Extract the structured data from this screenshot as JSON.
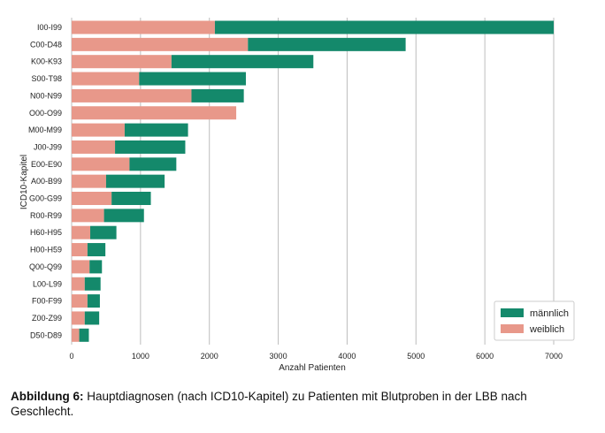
{
  "colors": {
    "maennlich": "#14896b",
    "weiblich": "#e8988a",
    "grid": "#bdbdbd"
  },
  "caption": {
    "lead": "Abbildung 6:",
    "text": " Hauptdiagnosen (nach ICD10-Kapitel) zu Patienten mit Blutproben in der LBB nach Geschlecht."
  },
  "chart_data": {
    "type": "bar",
    "orientation": "horizontal",
    "stacked": true,
    "xlabel": "Anzahl Patienten",
    "ylabel": "ICD10-Kapitel",
    "xlim": [
      0,
      7000
    ],
    "xticks": [
      0,
      1000,
      2000,
      3000,
      4000,
      5000,
      6000,
      7000
    ],
    "grid": "vertical",
    "legend_position": "bottom-right",
    "categories": [
      "I00-I99",
      "C00-D48",
      "K00-K93",
      "S00-T98",
      "N00-N99",
      "O00-O99",
      "M00-M99",
      "J00-J99",
      "E00-E90",
      "A00-B99",
      "G00-G99",
      "R00-R99",
      "H60-H95",
      "H00-H59",
      "Q00-Q99",
      "L00-L99",
      "F00-F99",
      "Z00-Z99",
      "D50-D89"
    ],
    "series": [
      {
        "name": "weiblich",
        "values": [
          2080,
          2560,
          1450,
          980,
          1740,
          2390,
          770,
          630,
          840,
          500,
          580,
          470,
          270,
          230,
          260,
          190,
          230,
          190,
          110
        ]
      },
      {
        "name": "männlich",
        "values": [
          4920,
          2290,
          2060,
          1550,
          760,
          0,
          920,
          1020,
          680,
          850,
          570,
          580,
          380,
          260,
          180,
          230,
          180,
          210,
          140
        ]
      }
    ],
    "legend": [
      "männlich",
      "weiblich"
    ]
  }
}
